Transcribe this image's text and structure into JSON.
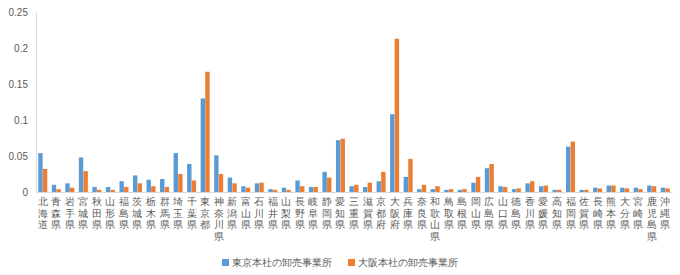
{
  "chart_data": {
    "type": "bar",
    "categories": [
      "北海道",
      "青森県",
      "岩手県",
      "宮城県",
      "秋田県",
      "山形県",
      "福島県",
      "茨城県",
      "栃木県",
      "群馬県",
      "埼玉県",
      "千葉県",
      "東京都",
      "神奈川県",
      "新潟県",
      "富山県",
      "石川県",
      "福井県",
      "山梨県",
      "長野県",
      "岐阜県",
      "静岡県",
      "愛知県",
      "三重県",
      "滋賀県",
      "京都府",
      "大阪府",
      "兵庫県",
      "奈良県",
      "和歌山県",
      "鳥取県",
      "島根県",
      "岡山県",
      "広島県",
      "山口県",
      "徳島県",
      "香川県",
      "愛媛県",
      "高知県",
      "福岡県",
      "佐賀県",
      "長崎県",
      "熊本県",
      "大分県",
      "宮崎県",
      "鹿児島県",
      "沖縄県"
    ],
    "series": [
      {
        "name": "東京本社の卸売事業所",
        "color": "#5b9bd5",
        "values": [
          0.054,
          0.01,
          0.012,
          0.048,
          0.007,
          0.007,
          0.015,
          0.023,
          0.017,
          0.018,
          0.054,
          0.039,
          0.13,
          0.051,
          0.02,
          0.008,
          0.012,
          0.004,
          0.006,
          0.016,
          0.007,
          0.028,
          0.072,
          0.008,
          0.007,
          0.015,
          0.108,
          0.021,
          0.004,
          0.004,
          0.003,
          0.003,
          0.013,
          0.033,
          0.008,
          0.004,
          0.012,
          0.008,
          0.003,
          0.063,
          0.003,
          0.006,
          0.009,
          0.006,
          0.006,
          0.009,
          0.006
        ]
      },
      {
        "name": "大阪本社の卸売事業所",
        "color": "#ed7d31",
        "values": [
          0.032,
          0.004,
          0.006,
          0.029,
          0.003,
          0.003,
          0.007,
          0.012,
          0.008,
          0.007,
          0.025,
          0.016,
          0.167,
          0.025,
          0.012,
          0.006,
          0.013,
          0.003,
          0.003,
          0.008,
          0.007,
          0.02,
          0.074,
          0.01,
          0.013,
          0.028,
          0.213,
          0.046,
          0.01,
          0.008,
          0.004,
          0.004,
          0.021,
          0.039,
          0.007,
          0.005,
          0.015,
          0.009,
          0.003,
          0.07,
          0.003,
          0.005,
          0.009,
          0.005,
          0.004,
          0.008,
          0.005
        ]
      }
    ],
    "ylim": [
      0,
      0.25
    ],
    "yticks": [
      0,
      0.05,
      0.1,
      0.15,
      0.2,
      0.25
    ],
    "grid": false,
    "legend": "bottom"
  }
}
